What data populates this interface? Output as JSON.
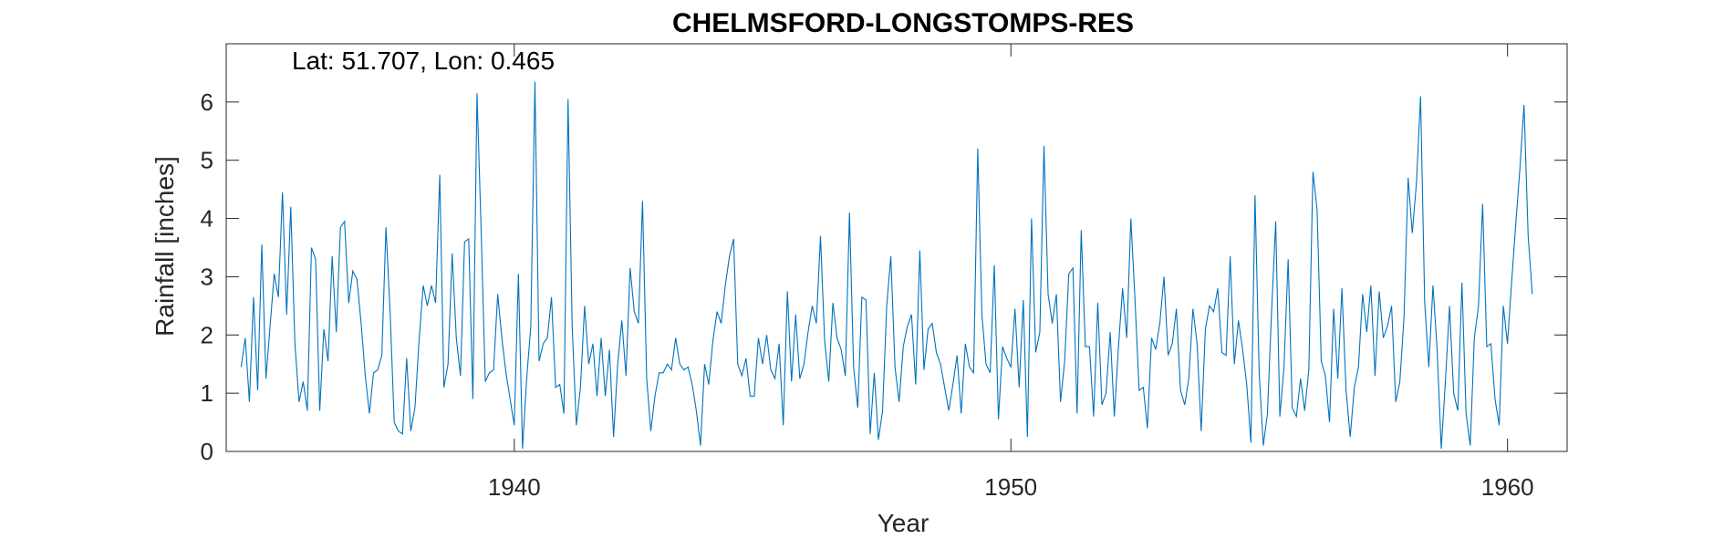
{
  "chart_data": {
    "type": "line",
    "title": "CHELMSFORD-LONGSTOMPS-RES",
    "annotation": "Lat: 51.707, Lon: 0.465",
    "xlabel": "Year",
    "ylabel": "Rainfall [inches]",
    "xlim": [
      1934.2,
      1961.2
    ],
    "ylim": [
      0,
      7
    ],
    "x_ticks": [
      1940,
      1950,
      1960
    ],
    "y_ticks": [
      0,
      1,
      2,
      3,
      4,
      5,
      6
    ],
    "grid": false,
    "x_start": 1934.5,
    "x_step": 0.08333,
    "series": [
      {
        "color": "#0072BD",
        "values": [
          1.45,
          1.95,
          0.85,
          2.65,
          1.05,
          3.55,
          1.25,
          2.15,
          3.05,
          2.65,
          4.45,
          2.35,
          4.2,
          1.85,
          0.85,
          1.2,
          0.7,
          3.5,
          3.3,
          0.7,
          2.1,
          1.55,
          3.35,
          2.05,
          3.85,
          3.95,
          2.55,
          3.1,
          2.95,
          2.2,
          1.3,
          0.65,
          1.35,
          1.4,
          1.65,
          3.85,
          2.4,
          0.5,
          0.35,
          0.3,
          1.6,
          0.35,
          0.75,
          1.9,
          2.85,
          2.5,
          2.85,
          2.55,
          4.75,
          1.1,
          1.5,
          3.4,
          1.95,
          1.3,
          3.6,
          3.65,
          0.9,
          6.15,
          3.8,
          1.2,
          1.35,
          1.4,
          2.7,
          1.95,
          1.35,
          0.9,
          0.45,
          3.05,
          0.05,
          1.25,
          2.15,
          6.35,
          1.55,
          1.85,
          1.95,
          2.65,
          1.1,
          1.15,
          0.65,
          6.05,
          2.15,
          0.45,
          1.1,
          2.5,
          1.5,
          1.85,
          0.95,
          1.95,
          0.95,
          1.75,
          0.25,
          1.5,
          2.25,
          1.3,
          3.15,
          2.4,
          2.2,
          4.3,
          1.25,
          0.35,
          0.95,
          1.35,
          1.35,
          1.5,
          1.4,
          1.95,
          1.5,
          1.4,
          1.45,
          1.15,
          0.7,
          0.1,
          1.5,
          1.15,
          1.9,
          2.4,
          2.2,
          2.85,
          3.35,
          3.65,
          1.5,
          1.3,
          1.6,
          0.95,
          0.95,
          1.95,
          1.5,
          2.0,
          1.4,
          1.25,
          1.85,
          0.45,
          2.75,
          1.2,
          2.35,
          1.25,
          1.5,
          2.05,
          2.5,
          2.2,
          3.7,
          1.9,
          1.2,
          2.55,
          1.95,
          1.75,
          1.3,
          4.1,
          1.45,
          0.75,
          2.65,
          2.6,
          0.3,
          1.35,
          0.2,
          0.7,
          2.5,
          3.35,
          1.45,
          0.85,
          1.8,
          2.15,
          2.35,
          1.15,
          3.45,
          1.4,
          2.1,
          2.2,
          1.7,
          1.5,
          1.1,
          0.7,
          1.15,
          1.65,
          0.65,
          1.85,
          1.45,
          1.35,
          5.2,
          2.35,
          1.5,
          1.35,
          3.2,
          0.55,
          1.8,
          1.6,
          1.45,
          2.45,
          1.1,
          2.6,
          0.25,
          4.0,
          1.7,
          2.05,
          5.25,
          2.7,
          2.2,
          2.7,
          0.85,
          1.55,
          3.05,
          3.15,
          0.65,
          3.8,
          1.8,
          1.8,
          0.6,
          2.55,
          0.8,
          1.0,
          2.05,
          0.6,
          1.8,
          2.8,
          1.95,
          4.0,
          2.6,
          1.05,
          1.1,
          0.4,
          1.95,
          1.75,
          2.2,
          3.0,
          1.65,
          1.85,
          2.45,
          1.05,
          0.8,
          1.25,
          2.45,
          1.85,
          0.35,
          2.1,
          2.5,
          2.4,
          2.8,
          1.7,
          1.65,
          3.35,
          1.5,
          2.25,
          1.75,
          1.15,
          0.15,
          4.4,
          1.35,
          0.1,
          0.65,
          2.4,
          3.95,
          0.6,
          1.45,
          3.3,
          0.75,
          0.6,
          1.25,
          0.7,
          1.4,
          4.8,
          4.15,
          1.55,
          1.3,
          0.5,
          2.45,
          1.25,
          2.8,
          1.05,
          0.25,
          1.1,
          1.45,
          2.7,
          2.05,
          2.85,
          1.3,
          2.75,
          1.95,
          2.15,
          2.5,
          0.85,
          1.2,
          2.3,
          4.7,
          3.75,
          4.6,
          6.1,
          2.55,
          1.45,
          2.85,
          1.75,
          0.05,
          1.2,
          2.5,
          1.0,
          0.7,
          2.9,
          0.65,
          0.1,
          1.95,
          2.5,
          4.25,
          1.8,
          1.85,
          0.9,
          0.45,
          2.5,
          1.85,
          2.9,
          3.9,
          4.85,
          5.95,
          3.7,
          2.7
        ]
      }
    ]
  }
}
